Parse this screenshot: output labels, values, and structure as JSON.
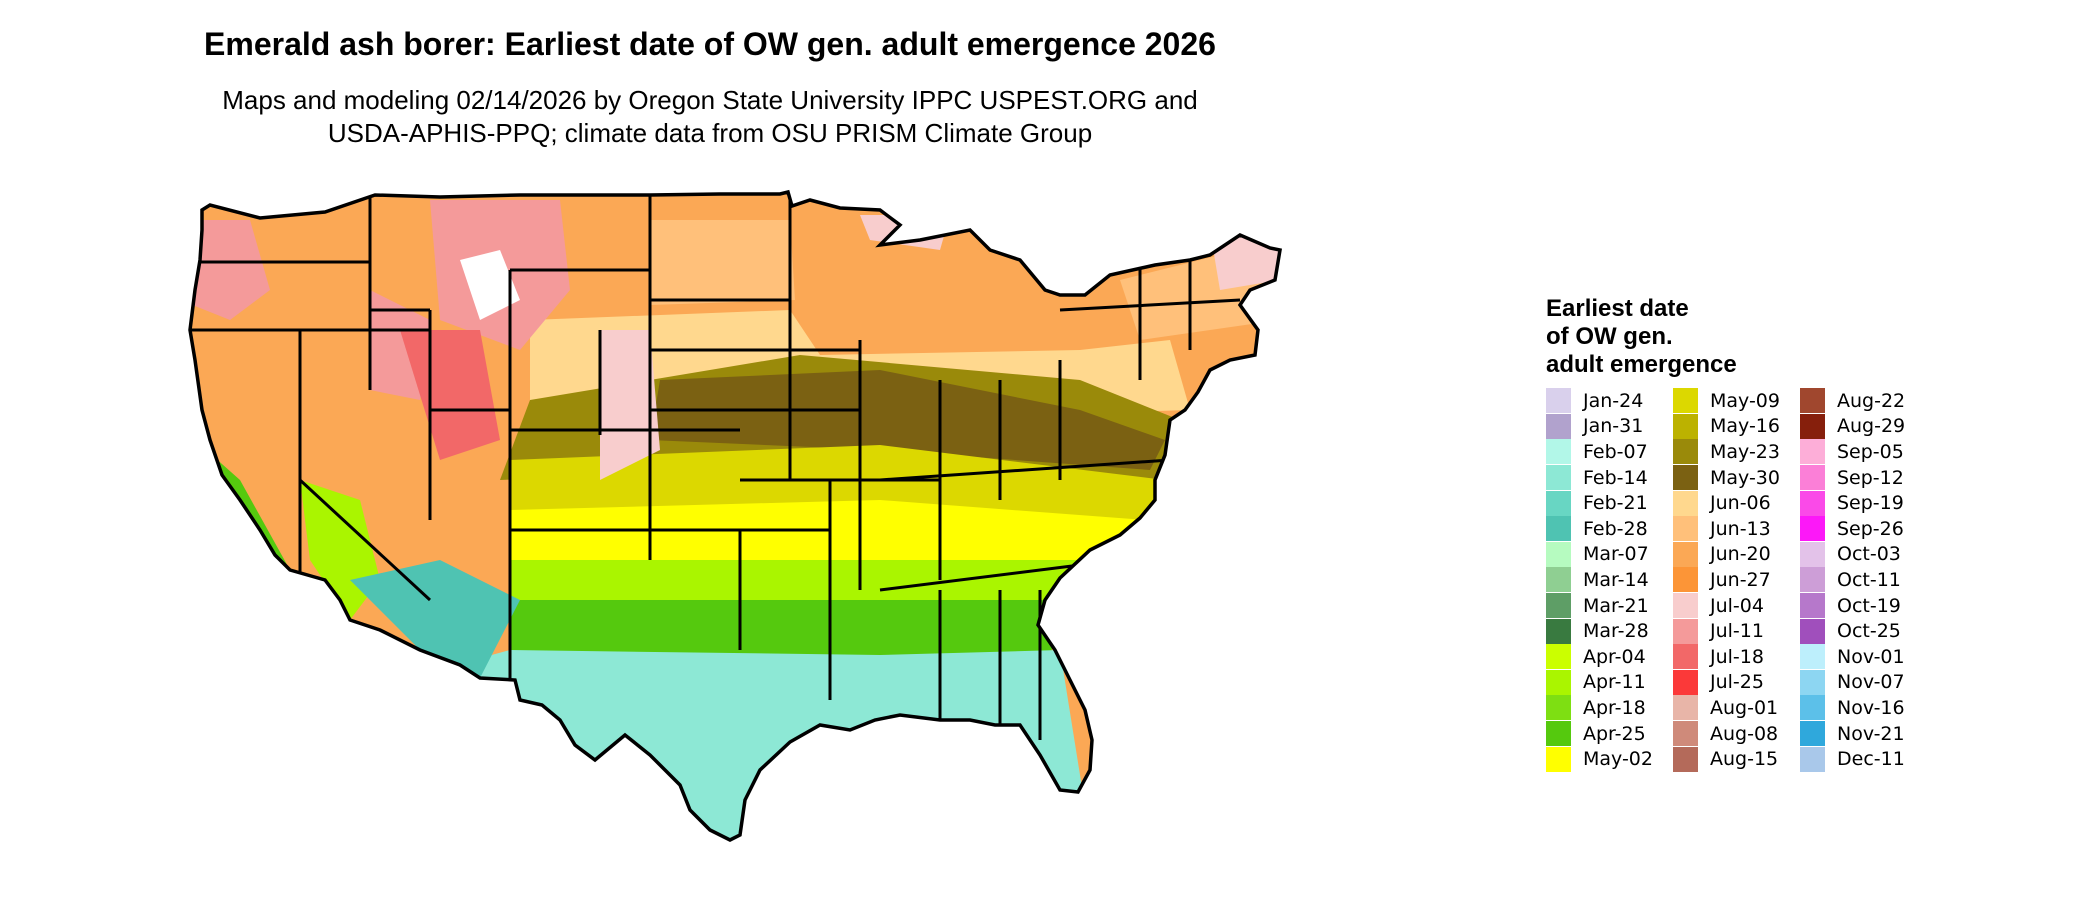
{
  "header": {
    "title": "Emerald ash borer: Earliest date of OW gen. adult emergence 2026",
    "subtitle_line1": "Maps and modeling 02/14/2026 by Oregon State University IPPC USPEST.ORG and",
    "subtitle_line2": "USDA-APHIS-PPQ; climate data from OSU PRISM Climate Group"
  },
  "legend": {
    "title_lines": [
      "Earliest date",
      "of OW gen.",
      "adult emergence"
    ],
    "items": [
      {
        "label": "Jan-24",
        "color": "#d9d0ec"
      },
      {
        "label": "Jan-31",
        "color": "#b1a2cd"
      },
      {
        "label": "Feb-07",
        "color": "#b2f7e8"
      },
      {
        "label": "Feb-14",
        "color": "#8de8d5"
      },
      {
        "label": "Feb-21",
        "color": "#68d6c3"
      },
      {
        "label": "Feb-28",
        "color": "#4fc3b2"
      },
      {
        "label": "Mar-07",
        "color": "#b6fbc0"
      },
      {
        "label": "Mar-14",
        "color": "#8fcf92"
      },
      {
        "label": "Mar-21",
        "color": "#5e9e66"
      },
      {
        "label": "Mar-28",
        "color": "#397a40"
      },
      {
        "label": "Apr-04",
        "color": "#cbff00"
      },
      {
        "label": "Apr-11",
        "color": "#aaf500"
      },
      {
        "label": "Apr-18",
        "color": "#7edf12"
      },
      {
        "label": "Apr-25",
        "color": "#55c90e"
      },
      {
        "label": "May-02",
        "color": "#ffff00"
      },
      {
        "label": "May-09",
        "color": "#dcd800"
      },
      {
        "label": "May-16",
        "color": "#bcb200"
      },
      {
        "label": "May-23",
        "color": "#9a8a0a"
      },
      {
        "label": "May-30",
        "color": "#7b6112"
      },
      {
        "label": "Jun-06",
        "color": "#ffd88e"
      },
      {
        "label": "Jun-13",
        "color": "#ffc07a"
      },
      {
        "label": "Jun-20",
        "color": "#fba855"
      },
      {
        "label": "Jun-27",
        "color": "#fc9537"
      },
      {
        "label": "Jul-04",
        "color": "#f8cdcd"
      },
      {
        "label": "Jul-11",
        "color": "#f49a9a"
      },
      {
        "label": "Jul-18",
        "color": "#f26868"
      },
      {
        "label": "Jul-25",
        "color": "#fb3939"
      },
      {
        "label": "Aug-01",
        "color": "#e8b5a8"
      },
      {
        "label": "Aug-08",
        "color": "#cf8a7a"
      },
      {
        "label": "Aug-15",
        "color": "#b46a5a"
      },
      {
        "label": "Aug-22",
        "color": "#a0472e"
      },
      {
        "label": "Aug-29",
        "color": "#861f0c"
      },
      {
        "label": "Sep-05",
        "color": "#fdaed8"
      },
      {
        "label": "Sep-12",
        "color": "#fb7fd7"
      },
      {
        "label": "Sep-19",
        "color": "#fa4ae8"
      },
      {
        "label": "Sep-26",
        "color": "#fc18f8"
      },
      {
        "label": "Oct-03",
        "color": "#e3c2e9"
      },
      {
        "label": "Oct-11",
        "color": "#cd9ed7"
      },
      {
        "label": "Oct-19",
        "color": "#b678cb"
      },
      {
        "label": "Oct-25",
        "color": "#a04fbc"
      },
      {
        "label": "Nov-01",
        "color": "#bdeffc"
      },
      {
        "label": "Nov-07",
        "color": "#8dd6f2"
      },
      {
        "label": "Nov-16",
        "color": "#5cc0e9"
      },
      {
        "label": "Nov-21",
        "color": "#2fa8dc"
      },
      {
        "label": "Dec-11",
        "color": "#a9c8ea"
      }
    ]
  },
  "map_colors": {
    "gulf": "#8de8d5",
    "south": "#55c90e",
    "south_light": "#aaf500",
    "mid_south": "#ffff00",
    "mid_south2": "#dcd800",
    "midwest": "#9a8a0a",
    "midwest_dark": "#7b6112",
    "great_plains": "#ffd88e",
    "north": "#fba855",
    "north_light": "#ffc07a",
    "mountains": "#f49a9a",
    "mountains_high": "#f26868",
    "cold": "#f8cdcd",
    "desert": "#4fc3b2",
    "snow": "#ffffff",
    "border": "#000000"
  }
}
